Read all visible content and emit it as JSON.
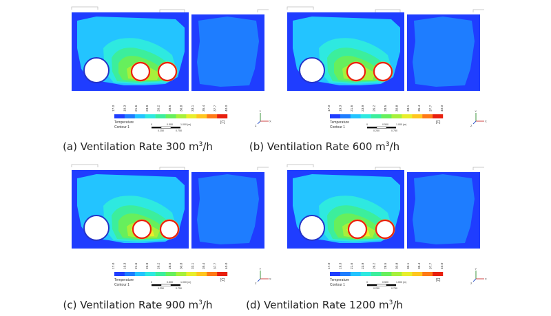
{
  "legend": {
    "ticks": [
      "17.0",
      "19.3",
      "21.6",
      "23.9",
      "26.2",
      "28.5",
      "30.8",
      "33.1",
      "35.4",
      "37.7",
      "40.0"
    ],
    "colors": [
      "#1f3dff",
      "#1e7dff",
      "#23c4ff",
      "#2ee9e0",
      "#3cee9c",
      "#67ef5c",
      "#a7f03b",
      "#e8ee2c",
      "#ffc61f",
      "#ff7a16",
      "#e8200e"
    ],
    "var_label": "Temperature",
    "unit_label": "[C]",
    "contour_label": "Contour 1"
  },
  "scale": {
    "left_label": "0",
    "mid_label": "0.500",
    "right_label": "1.000 (m)",
    "sub_mid": "0.250",
    "sub_right": "0.750"
  },
  "axes": {
    "x": "X",
    "y": "Y",
    "z": "Z"
  },
  "panels": [
    {
      "prefix": "(a) Ventilation Rate 300 m",
      "sup": "3",
      "suffix": "/h"
    },
    {
      "prefix": "(b) Ventilation Rate 600 m",
      "sup": "3",
      "suffix": "/h"
    },
    {
      "prefix": "(c) Ventilation Rate 900 m",
      "sup": "3",
      "suffix": "/h"
    },
    {
      "prefix": "(d) Ventilation Rate 1200 m",
      "sup": "3",
      "suffix": "/h"
    }
  ]
}
